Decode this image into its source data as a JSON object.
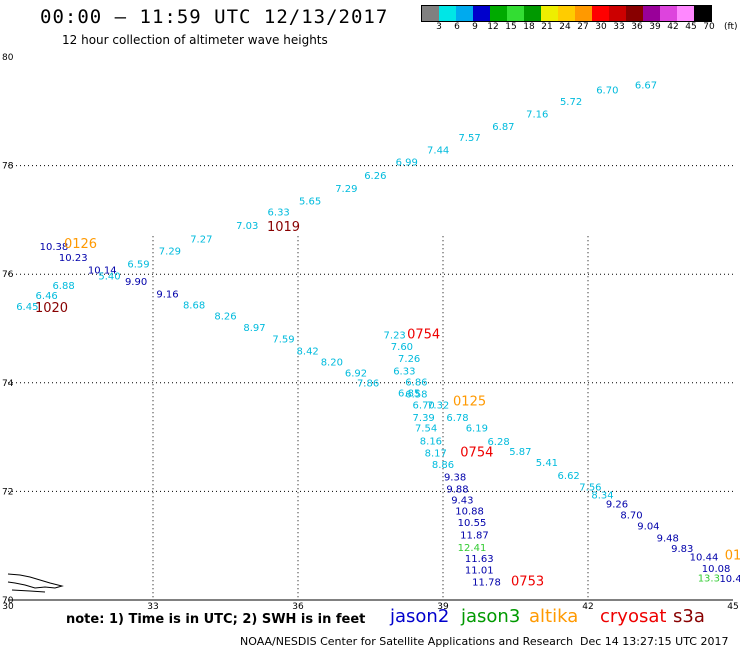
{
  "header": {
    "title": "00:00 – 11:59 UTC 12/13/2017",
    "subtitle": "12 hour collection of altimeter wave heights"
  },
  "colorbar": {
    "colors": [
      "#808080",
      "#00e6e6",
      "#00aaee",
      "#0000cc",
      "#00aa00",
      "#33dd33",
      "#009900",
      "#eeee00",
      "#ffcc00",
      "#ff9900",
      "#ff0000",
      "#cc0000",
      "#880000",
      "#990099",
      "#dd44dd",
      "#ff88ff",
      "#000000"
    ],
    "labels": [
      "3",
      "6",
      "9",
      "12",
      "15",
      "18",
      "21",
      "24",
      "27",
      "30",
      "33",
      "36",
      "39",
      "42",
      "45",
      "70"
    ],
    "unit": "(ft)"
  },
  "map": {
    "x_ticks": [
      "30",
      "33",
      "36",
      "39",
      "42",
      "45"
    ],
    "y_ticks": [
      "70",
      "72",
      "74",
      "76",
      "78",
      "80"
    ]
  },
  "chart_data": {
    "type": "scatter",
    "xlim": [
      30,
      45
    ],
    "ylim": [
      70,
      80
    ],
    "grid": true,
    "x_ticks": [
      30,
      33,
      36,
      39,
      42,
      45
    ],
    "y_ticks": [
      70,
      72,
      74,
      76,
      78,
      80
    ],
    "series": [
      {
        "name": "jason2",
        "color": "#0000aa",
        "points": [
          {
            "x": 30.95,
            "y": 76.45,
            "label": "10.38"
          },
          {
            "x": 31.35,
            "y": 76.24,
            "label": "10.23"
          },
          {
            "x": 31.95,
            "y": 76.01,
            "label": "10.14"
          },
          {
            "x": 32.65,
            "y": 75.8,
            "label": "9.90"
          },
          {
            "x": 33.3,
            "y": 75.57,
            "label": "9.16"
          },
          {
            "x": 39.25,
            "y": 72.2,
            "label": "9.38"
          },
          {
            "x": 39.3,
            "y": 71.98,
            "label": "9.88"
          },
          {
            "x": 39.4,
            "y": 71.78,
            "label": "9.43"
          },
          {
            "x": 39.55,
            "y": 71.57,
            "label": "10.88"
          },
          {
            "x": 39.6,
            "y": 71.36,
            "label": "10.55"
          },
          {
            "x": 39.65,
            "y": 71.13,
            "label": "11.87"
          },
          {
            "x": 39.75,
            "y": 70.7,
            "label": "11.63"
          },
          {
            "x": 39.75,
            "y": 70.49,
            "label": "11.01"
          },
          {
            "x": 39.9,
            "y": 70.27,
            "label": "11.78"
          },
          {
            "x": 42.6,
            "y": 71.7,
            "label": "9.26"
          },
          {
            "x": 42.9,
            "y": 71.5,
            "label": "8.70"
          },
          {
            "x": 43.25,
            "y": 71.3,
            "label": "9.04"
          },
          {
            "x": 43.65,
            "y": 71.08,
            "label": "9.48"
          },
          {
            "x": 43.95,
            "y": 70.88,
            "label": "9.83"
          },
          {
            "x": 44.4,
            "y": 70.73,
            "label": "10.44"
          },
          {
            "x": 44.65,
            "y": 70.52,
            "label": "10.08"
          },
          {
            "x": 44.95,
            "y": 70.33,
            "label": "10.4"
          }
        ]
      },
      {
        "name": "jason3",
        "color": "#00bbdd",
        "points": [
          {
            "x": 30.4,
            "y": 75.34,
            "label": "6.45"
          },
          {
            "x": 30.8,
            "y": 75.54,
            "label": "6.46"
          },
          {
            "x": 31.15,
            "y": 75.73,
            "label": "6.88"
          },
          {
            "x": 32.1,
            "y": 75.9,
            "label": "5.40"
          },
          {
            "x": 32.7,
            "y": 76.12,
            "label": "6.59"
          },
          {
            "x": 33.35,
            "y": 76.36,
            "label": "7.29"
          },
          {
            "x": 34.0,
            "y": 76.58,
            "label": "7.27"
          },
          {
            "x": 34.95,
            "y": 76.83,
            "label": "7.03"
          },
          {
            "x": 35.6,
            "y": 77.08,
            "label": "6.33"
          },
          {
            "x": 36.25,
            "y": 77.28,
            "label": "5.65"
          },
          {
            "x": 37.0,
            "y": 77.51,
            "label": "7.29"
          },
          {
            "x": 37.6,
            "y": 77.75,
            "label": "6.26"
          },
          {
            "x": 38.25,
            "y": 78.0,
            "label": "6.99"
          },
          {
            "x": 38.9,
            "y": 78.22,
            "label": "7.44"
          },
          {
            "x": 39.55,
            "y": 78.45,
            "label": "7.57"
          },
          {
            "x": 40.25,
            "y": 78.66,
            "label": "6.87"
          },
          {
            "x": 40.95,
            "y": 78.89,
            "label": "7.16"
          },
          {
            "x": 41.65,
            "y": 79.12,
            "label": "5.72"
          },
          {
            "x": 42.4,
            "y": 79.33,
            "label": "6.70"
          },
          {
            "x": 43.2,
            "y": 79.42,
            "label": "6.67"
          },
          {
            "x": 33.85,
            "y": 75.37,
            "label": "8.68"
          },
          {
            "x": 34.5,
            "y": 75.17,
            "label": "8.26"
          },
          {
            "x": 35.1,
            "y": 74.95,
            "label": "8.97"
          },
          {
            "x": 35.7,
            "y": 74.74,
            "label": "7.59"
          },
          {
            "x": 36.2,
            "y": 74.52,
            "label": "8.42"
          },
          {
            "x": 36.7,
            "y": 74.32,
            "label": "8.20"
          },
          {
            "x": 37.2,
            "y": 74.12,
            "label": "6.92"
          },
          {
            "x": 37.45,
            "y": 73.93,
            "label": "7.86"
          },
          {
            "x": 38.0,
            "y": 74.82,
            "label": "7.23"
          },
          {
            "x": 38.15,
            "y": 74.6,
            "label": "7.60"
          },
          {
            "x": 38.3,
            "y": 74.38,
            "label": "7.26"
          },
          {
            "x": 38.2,
            "y": 74.15,
            "label": "6.33"
          },
          {
            "x": 38.45,
            "y": 73.95,
            "label": "6.86"
          },
          {
            "x": 38.3,
            "y": 73.75,
            "label": "6.85"
          },
          {
            "x": 38.45,
            "y": 73.73,
            "label": "6.58"
          },
          {
            "x": 38.6,
            "y": 73.53,
            "label": "6.70"
          },
          {
            "x": 38.9,
            "y": 73.53,
            "label": "7.32"
          },
          {
            "x": 38.6,
            "y": 73.3,
            "label": "7.39"
          },
          {
            "x": 39.3,
            "y": 73.3,
            "label": "6.78"
          },
          {
            "x": 38.65,
            "y": 73.1,
            "label": "7.54"
          },
          {
            "x": 39.7,
            "y": 73.1,
            "label": "6.19"
          },
          {
            "x": 38.75,
            "y": 72.86,
            "label": "8.16"
          },
          {
            "x": 40.15,
            "y": 72.85,
            "label": "6.28"
          },
          {
            "x": 38.85,
            "y": 72.64,
            "label": "8.17"
          },
          {
            "x": 40.6,
            "y": 72.67,
            "label": "5.87"
          },
          {
            "x": 39.0,
            "y": 72.43,
            "label": "8.86"
          },
          {
            "x": 41.15,
            "y": 72.47,
            "label": "5.41"
          },
          {
            "x": 41.6,
            "y": 72.23,
            "label": "6.62"
          },
          {
            "x": 42.05,
            "y": 72.02,
            "label": "7.56"
          },
          {
            "x": 42.3,
            "y": 71.87,
            "label": "8.34"
          }
        ]
      },
      {
        "name": "jason3-green",
        "color": "#33cc33",
        "points": [
          {
            "x": 39.6,
            "y": 70.9,
            "label": "12.41"
          },
          {
            "x": 44.5,
            "y": 70.34,
            "label": "13.3"
          }
        ]
      },
      {
        "name": "altika",
        "color": "#ff9900",
        "points": [
          {
            "x": 31.5,
            "y": 76.48,
            "label": "0126"
          },
          {
            "x": 39.55,
            "y": 73.58,
            "label": "0125"
          },
          {
            "x": 45.0,
            "y": 70.75,
            "label": "01"
          }
        ]
      },
      {
        "name": "cryosat",
        "color": "#ee0000",
        "points": [
          {
            "x": 38.6,
            "y": 74.82,
            "label": "0754"
          },
          {
            "x": 39.7,
            "y": 72.64,
            "label": "0754"
          },
          {
            "x": 40.75,
            "y": 70.27,
            "label": "0753"
          }
        ]
      },
      {
        "name": "s3a",
        "color": "#880000",
        "points": [
          {
            "x": 30.9,
            "y": 75.3,
            "label": "1020"
          },
          {
            "x": 35.7,
            "y": 76.8,
            "label": "1019"
          }
        ]
      }
    ]
  },
  "legend": {
    "items": [
      {
        "label": "jason2",
        "color": "#0000cc"
      },
      {
        "label": "jason3",
        "color": "#009900"
      },
      {
        "label": "altika",
        "color": "#ff9900"
      },
      {
        "label": "cryosat",
        "color": "#ee0000"
      },
      {
        "label": "s3a",
        "color": "#880000"
      }
    ]
  },
  "note": "note: 1) Time is in UTC; 2) SWH is in feet",
  "footer": {
    "credit": "NOAA/NESDIS Center for Satellite Applications and Research",
    "timestamp": "Dec 14 13:27:15 UTC 2017"
  }
}
